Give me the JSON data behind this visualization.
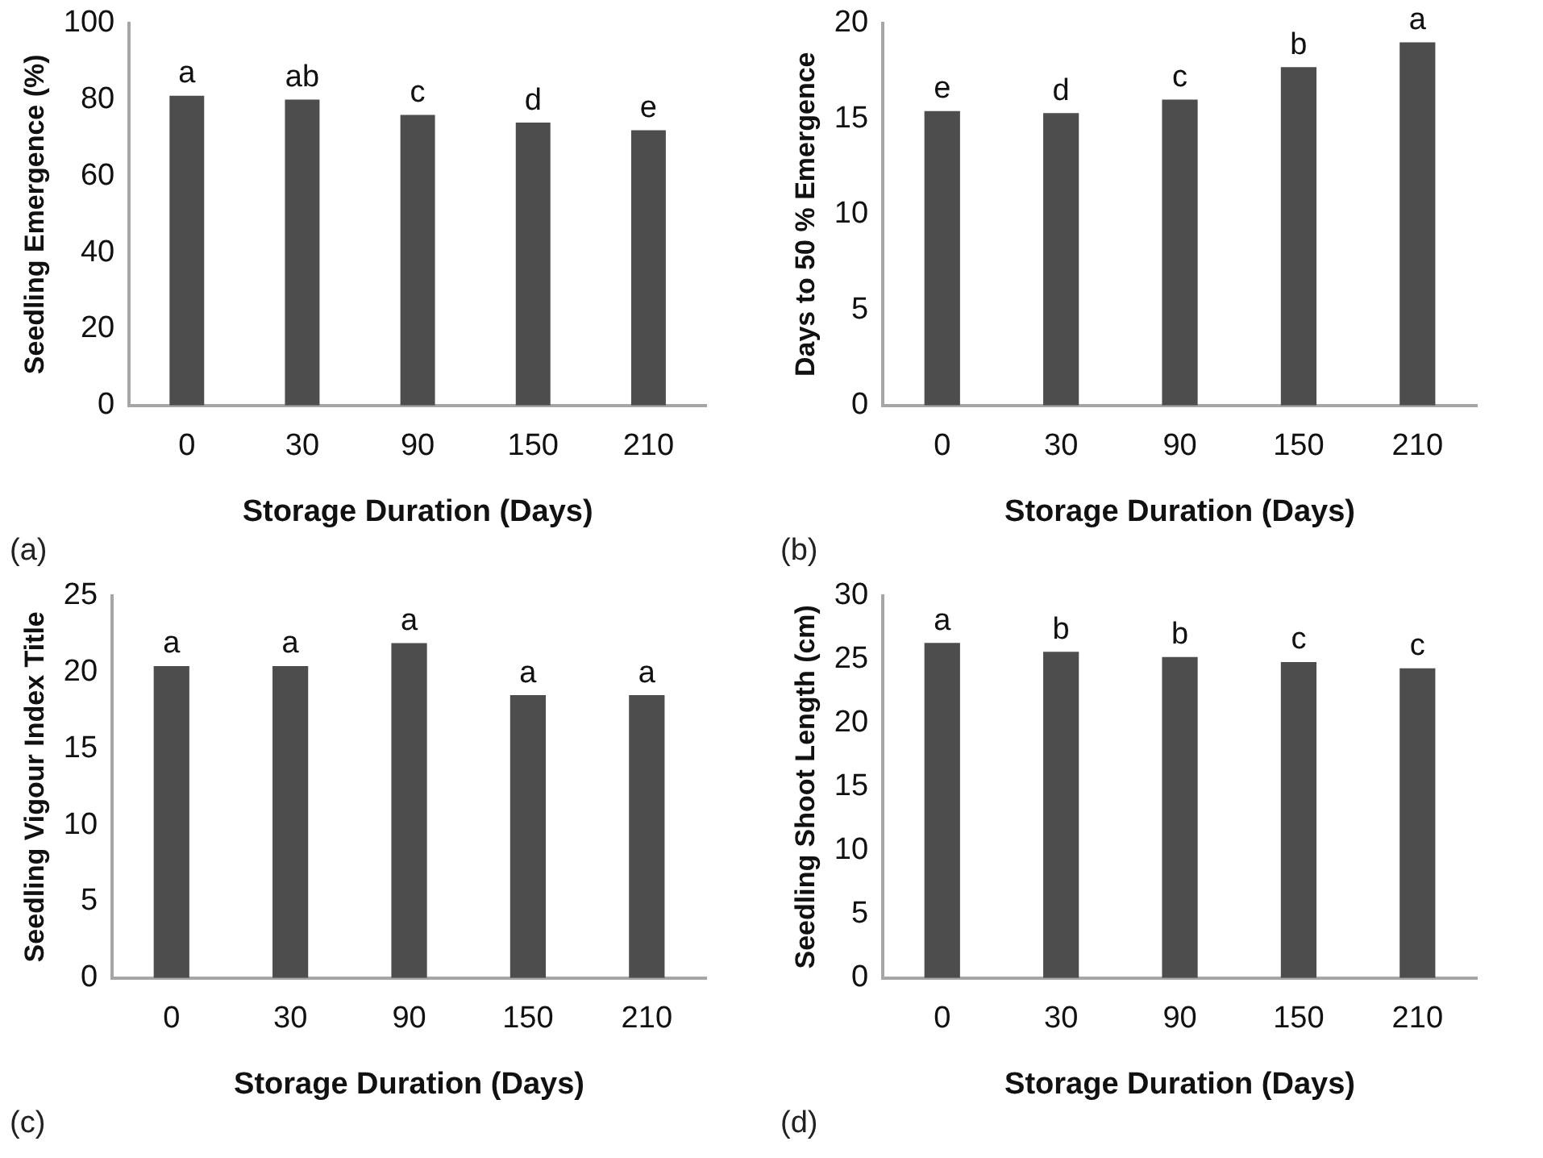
{
  "chart_data": [
    {
      "type": "bar",
      "xlabel": "Storage Duration (Days)",
      "ylabel": "Seedling Emergence (%)",
      "categories": [
        "0",
        "30",
        "90",
        "150",
        "210"
      ],
      "values": [
        81,
        80,
        76,
        74,
        72
      ],
      "value_labels": [
        "a",
        "ab",
        "c",
        "d",
        "e"
      ],
      "color": "#4d4d4d",
      "ylim": [
        0,
        100
      ],
      "yticks": [
        0,
        20,
        40,
        60,
        80,
        100
      ],
      "annotations": [
        "(a)"
      ]
    },
    {
      "type": "bar",
      "xlabel": "Storage Duration (Days)",
      "ylabel": "Days to 50 % Emergence",
      "categories": [
        "0",
        "30",
        "90",
        "150",
        "210"
      ],
      "values": [
        15.4,
        15.3,
        16,
        17.7,
        19
      ],
      "value_labels": [
        "e",
        "d",
        "c",
        "b",
        "a"
      ],
      "color": "#4d4d4d",
      "ylim": [
        0,
        20
      ],
      "yticks": [
        0,
        5,
        10,
        15,
        20
      ],
      "annotations": [
        "(b)"
      ]
    },
    {
      "type": "bar",
      "xlabel": "Storage Duration (Days)",
      "ylabel": "Seedling Vigour Index Title",
      "categories": [
        "0",
        "30",
        "90",
        "150",
        "210"
      ],
      "values": [
        20.4,
        20.4,
        21.9,
        18.5,
        18.5
      ],
      "value_labels": [
        "a",
        "a",
        "a",
        "a",
        "a"
      ],
      "color": "#4d4d4d",
      "ylim": [
        0,
        25
      ],
      "yticks": [
        0,
        5,
        10,
        15,
        20,
        25
      ],
      "annotations": [
        "(c)"
      ]
    },
    {
      "type": "bar",
      "xlabel": "Storage Duration (Days)",
      "ylabel": "Seedling Shoot Length (cm)",
      "categories": [
        "0",
        "30",
        "90",
        "150",
        "210"
      ],
      "values": [
        26.3,
        25.6,
        25.2,
        24.8,
        24.3
      ],
      "value_labels": [
        "a",
        "b",
        "b",
        "c",
        "c"
      ],
      "color": "#4d4d4d",
      "ylim": [
        0,
        30
      ],
      "yticks": [
        0,
        5,
        10,
        15,
        20,
        25,
        30
      ],
      "annotations": [
        "(d)"
      ]
    }
  ]
}
